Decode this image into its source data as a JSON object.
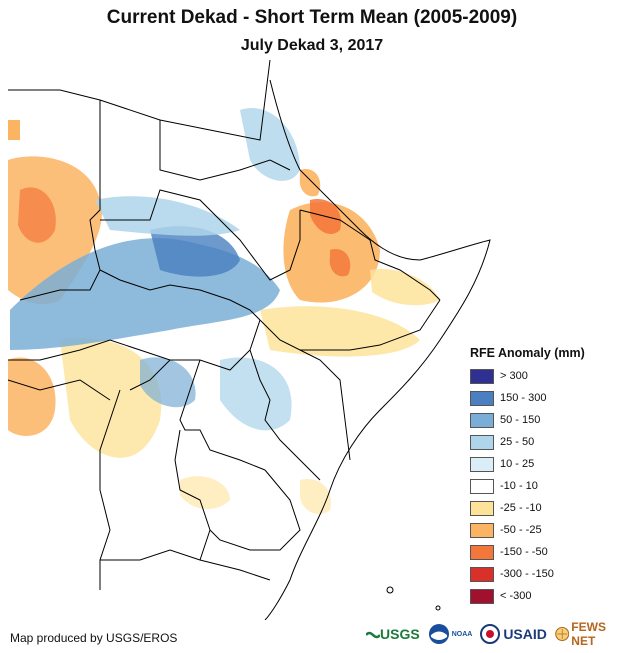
{
  "header": {
    "title": "Current Dekad - Short Term Mean (2005-2009)",
    "subtitle": "July Dekad 3, 2017"
  },
  "legend": {
    "title": "RFE Anomaly (mm)",
    "items": [
      {
        "label": "> 300",
        "color": "#2e3192"
      },
      {
        "label": "150 - 300",
        "color": "#4a7fc1"
      },
      {
        "label": "50 - 150",
        "color": "#7aaed6"
      },
      {
        "label": "25 - 50",
        "color": "#aed5ea"
      },
      {
        "label": "10 - 25",
        "color": "#dbeef7"
      },
      {
        "label": "-10 - 10",
        "color": "#ffffff"
      },
      {
        "label": "-25 - -10",
        "color": "#fde39a"
      },
      {
        "label": "-50 - -25",
        "color": "#fbb462"
      },
      {
        "label": "-150 - -50",
        "color": "#f3763a"
      },
      {
        "label": "-300 - -150",
        "color": "#d9302a"
      },
      {
        "label": "< -300",
        "color": "#a1102d"
      }
    ]
  },
  "footer": {
    "credit": "Map produced by USGS/EROS",
    "logos": [
      "USGS",
      "NOAA",
      "USAID",
      "FEWS NET"
    ]
  }
}
